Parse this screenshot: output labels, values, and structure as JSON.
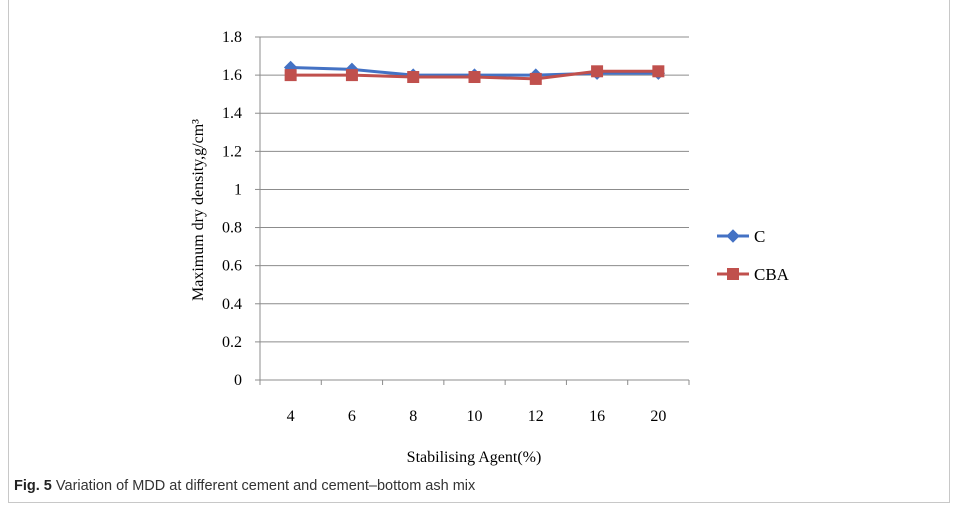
{
  "caption": {
    "label": "Fig. 5",
    "text": "Variation of MDD at different cement and cement–bottom ash mix"
  },
  "chart_data": {
    "type": "line",
    "categories": [
      "4",
      "6",
      "8",
      "10",
      "12",
      "16",
      "20"
    ],
    "series": [
      {
        "name": "C",
        "values": [
          1.64,
          1.63,
          1.6,
          1.6,
          1.6,
          1.61,
          1.61
        ],
        "color": "#4472C4",
        "marker": "diamond"
      },
      {
        "name": "CBA",
        "values": [
          1.6,
          1.6,
          1.59,
          1.59,
          1.58,
          1.62,
          1.62
        ],
        "color": "#C0504D",
        "marker": "square"
      }
    ],
    "xlabel": "Stabilising Agent(%)",
    "ylabel": "Maximum dry density,g/cm³",
    "ylim": [
      0,
      1.8
    ],
    "yticks": [
      "0",
      "0.2",
      "0.4",
      "0.6",
      "0.8",
      "1",
      "1.2",
      "1.4",
      "1.6",
      "1.8"
    ],
    "grid": true,
    "legend": "right"
  }
}
